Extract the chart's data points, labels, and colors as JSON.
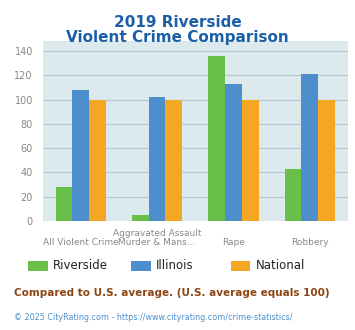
{
  "title_line1": "2019 Riverside",
  "title_line2": "Violent Crime Comparison",
  "cat_labels_top": [
    "",
    "Aggravated Assault",
    "",
    ""
  ],
  "cat_labels_bot": [
    "All Violent Crime",
    "Murder & Mans...",
    "Rape",
    "Robbery"
  ],
  "riverside": [
    28,
    5,
    136,
    43
  ],
  "illinois": [
    108,
    102,
    113,
    121
  ],
  "national": [
    100,
    100,
    100,
    100
  ],
  "riverside_color": "#6abf4b",
  "illinois_color": "#4d8fcc",
  "national_color": "#f5a623",
  "ylim": [
    0,
    148
  ],
  "yticks": [
    0,
    20,
    40,
    60,
    80,
    100,
    120,
    140
  ],
  "background_color": "#dce9ed",
  "title_color": "#1a5fa8",
  "subtitle_text": "Compared to U.S. average. (U.S. average equals 100)",
  "copyright_text": "© 2025 CityRating.com - https://www.cityrating.com/crime-statistics/",
  "subtitle_color": "#8b4513",
  "copyright_color": "#4d8fcc",
  "grid_color": "#b0c8d0",
  "tick_color": "#888888",
  "legend_labels": [
    "Riverside",
    "Illinois",
    "National"
  ]
}
